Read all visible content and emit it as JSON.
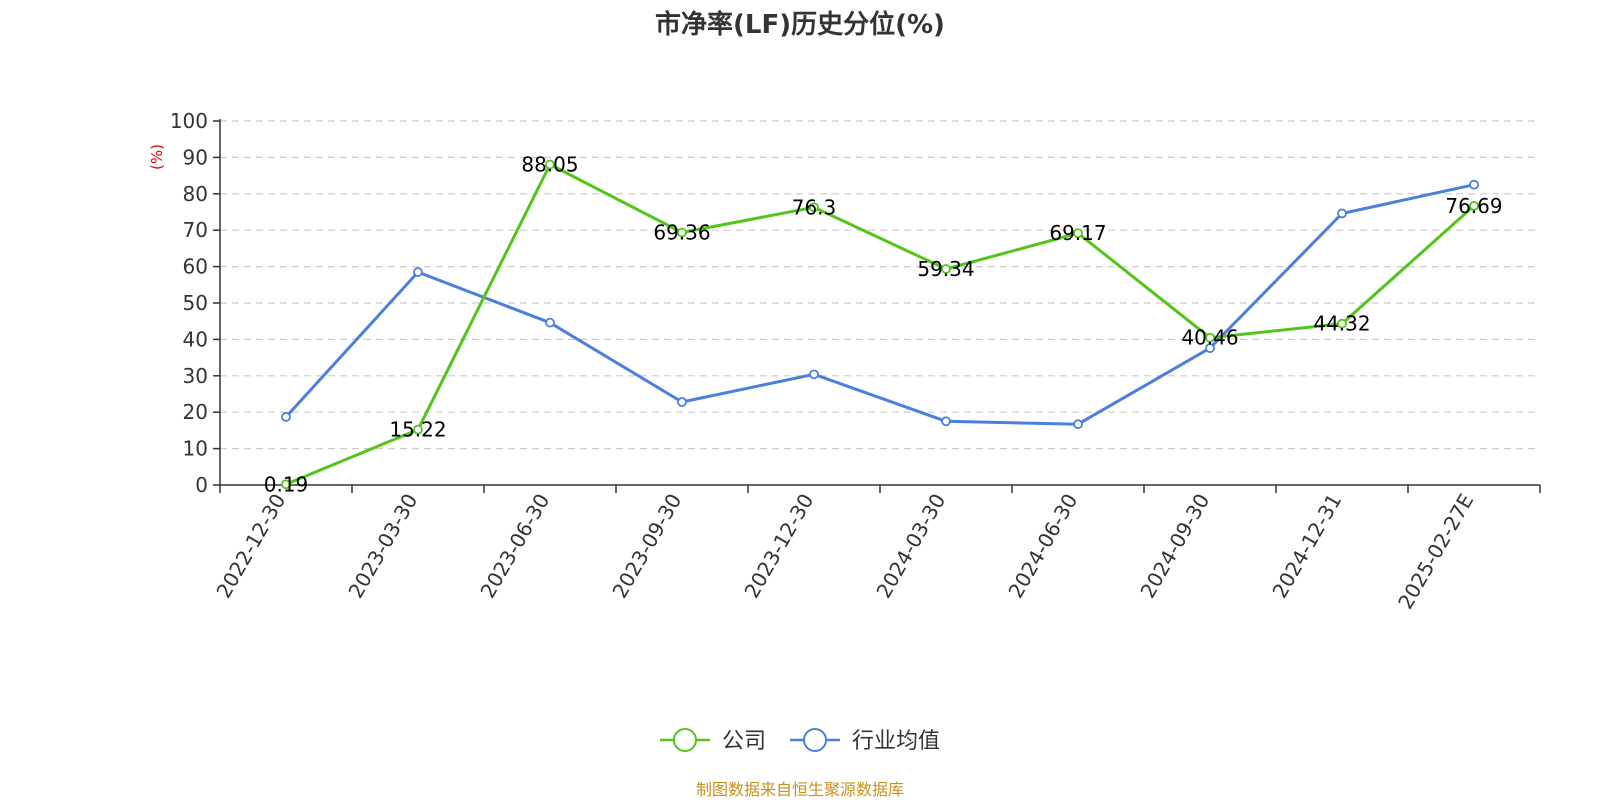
{
  "chart_data": {
    "type": "line",
    "title": "市净率(LF)历史分位(%)",
    "unit_label": "(%)",
    "categories": [
      "2022-12-30",
      "2023-03-30",
      "2023-06-30",
      "2023-09-30",
      "2023-12-30",
      "2024-03-30",
      "2024-06-30",
      "2024-09-30",
      "2024-12-31",
      "2025-02-27E"
    ],
    "ylim": [
      0,
      100
    ],
    "y_ticks": [
      0,
      10,
      20,
      30,
      40,
      50,
      60,
      70,
      80,
      90,
      100
    ],
    "grid": true,
    "legend_position": "bottom",
    "series": [
      {
        "name": "公司",
        "color": "#52c41a",
        "values": [
          0.19,
          15.22,
          88.05,
          69.36,
          76.3,
          59.34,
          69.17,
          40.46,
          44.32,
          76.69
        ],
        "data_labels": [
          "0.19",
          "15.22",
          "88.05",
          "69.36",
          "76.3",
          "59.34",
          "69.17",
          "40.46",
          "44.32",
          "76.69"
        ],
        "show_labels": true
      },
      {
        "name": "行业均值",
        "color": "#4a7fdc",
        "values": [
          18.7,
          58.5,
          44.6,
          22.8,
          30.4,
          17.5,
          16.7,
          37.6,
          74.6,
          82.5
        ],
        "show_labels": false
      }
    ]
  },
  "source": "制图数据来自恒生聚源数据库"
}
